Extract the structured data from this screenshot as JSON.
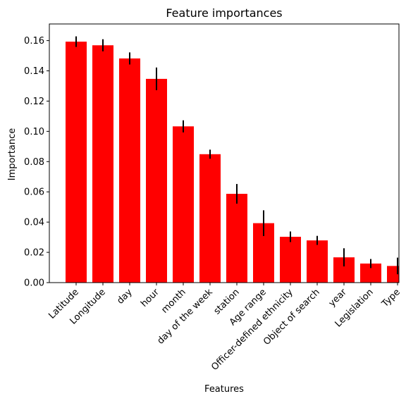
{
  "chart_data": {
    "type": "bar",
    "title": "Feature importances",
    "xlabel": "Features",
    "ylabel": "Importance",
    "ylim": [
      0,
      0.171
    ],
    "yticks": [
      "0.00",
      "0.02",
      "0.04",
      "0.06",
      "0.08",
      "0.10",
      "0.12",
      "0.14",
      "0.16"
    ],
    "grid": false,
    "bar_color": "#ff0000",
    "error_bar_color": "#000000",
    "categories": [
      "Latitude",
      "Longitude",
      "day",
      "hour",
      "month",
      "day of the week",
      "station",
      "Age range",
      "Officer-defined ethnicity",
      "Object of search",
      "year",
      "Legislation",
      "Type"
    ],
    "values": [
      0.1593,
      0.1569,
      0.1482,
      0.1347,
      0.1033,
      0.0849,
      0.0587,
      0.0393,
      0.0303,
      0.0279,
      0.0167,
      0.0126,
      0.011
    ],
    "errors": [
      0.0035,
      0.004,
      0.004,
      0.0075,
      0.004,
      0.003,
      0.0065,
      0.0085,
      0.0035,
      0.003,
      0.006,
      0.003,
      0.0055
    ]
  }
}
